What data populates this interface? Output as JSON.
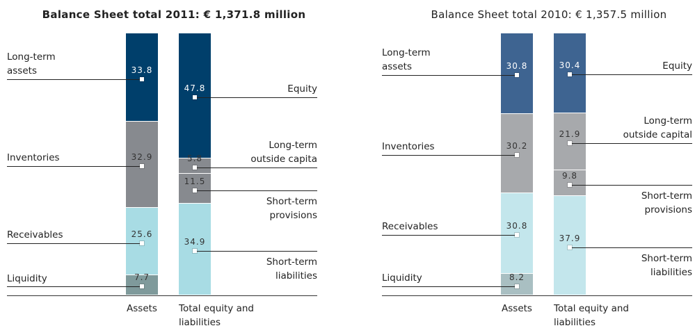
{
  "chart_data": [
    {
      "type": "stacked-bar",
      "title": "Balance Sheet total 2011: € 1,371.8 million",
      "title_bold": true,
      "categories": [
        "Assets",
        "Total equity and\nliabilities"
      ],
      "stacks": [
        [
          {
            "name": "Long-term\nassets",
            "value": 33.8,
            "color": "#003f6b"
          },
          {
            "name": "Inventories",
            "value": 32.9,
            "color": "#878a8f"
          },
          {
            "name": "Receivables",
            "value": 25.6,
            "color": "#a8dce4"
          },
          {
            "name": "Liquidity",
            "value": 7.7,
            "color": "#7f9a9b"
          }
        ],
        [
          {
            "name": "Equity",
            "value": 47.8,
            "color": "#003f6b"
          },
          {
            "name": "Long-term\noutside capita",
            "value": 5.8,
            "color": "#878a8f"
          },
          {
            "name": "Short-term\nprovisions",
            "value": 11.5,
            "color": "#878a8f"
          },
          {
            "name": "Short-term\nliabilities",
            "value": 34.9,
            "color": "#a8dce4"
          }
        ]
      ]
    },
    {
      "type": "stacked-bar",
      "title": "Balance Sheet total 2010: € 1,357.5 million",
      "title_bold": false,
      "categories": [
        "Assets",
        "Total equity and\nliabilities"
      ],
      "stacks": [
        [
          {
            "name": "Long-term\nassets",
            "value": 30.8,
            "color": "#3e6491"
          },
          {
            "name": "Inventories",
            "value": 30.2,
            "color": "#a7a9ac"
          },
          {
            "name": "Receivables",
            "value": 30.8,
            "color": "#c3e6ec"
          },
          {
            "name": "Liquidity",
            "value": 8.2,
            "color": "#a9bfc2"
          }
        ],
        [
          {
            "name": "Equity",
            "value": 30.4,
            "color": "#3e6491"
          },
          {
            "name": "Long-term\noutside capital",
            "value": 21.9,
            "color": "#a7a9ac"
          },
          {
            "name": "Short-term\nprovisions",
            "value": 9.8,
            "color": "#a7a9ac"
          },
          {
            "name": "Short-term\nliabilities",
            "value": 37.9,
            "color": "#c3e6ec"
          }
        ]
      ]
    }
  ]
}
